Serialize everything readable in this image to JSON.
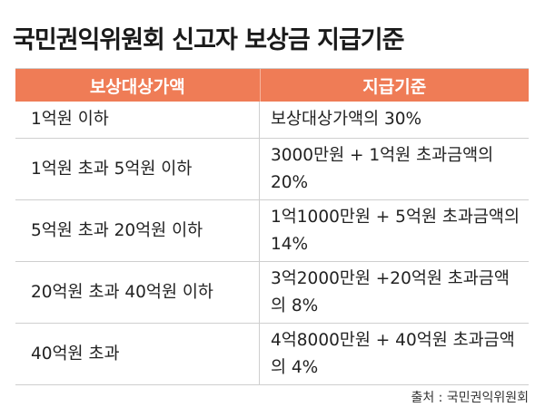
{
  "title": "국민권익위원회 신고자 보상금 지급기준",
  "table": {
    "headers": [
      "보상대상가액",
      "지급기준"
    ],
    "rows": [
      {
        "range": "1억원 이하",
        "criteria": "보상대상가액의 30%"
      },
      {
        "range": "1억원 초과 5억원 이하",
        "criteria": "3000만원 + 1억원 초과금액의 20%"
      },
      {
        "range": "5억원 초과 20억원 이하",
        "criteria": "1억1000만원 + 5억원 초과금액의 14%"
      },
      {
        "range": "20억원 초과 40억원 이하",
        "criteria": "3억2000만원 +20억원 초과금액의 8%"
      },
      {
        "range": "40억원 초과",
        "criteria": "4억8000만원 + 40억원 초과금액의 4%"
      }
    ]
  },
  "source": "출처 : 국민권익위원회",
  "colors": {
    "header_bg": "#ef7c56",
    "header_text": "#ffffff",
    "border": "#cfcfcf"
  }
}
